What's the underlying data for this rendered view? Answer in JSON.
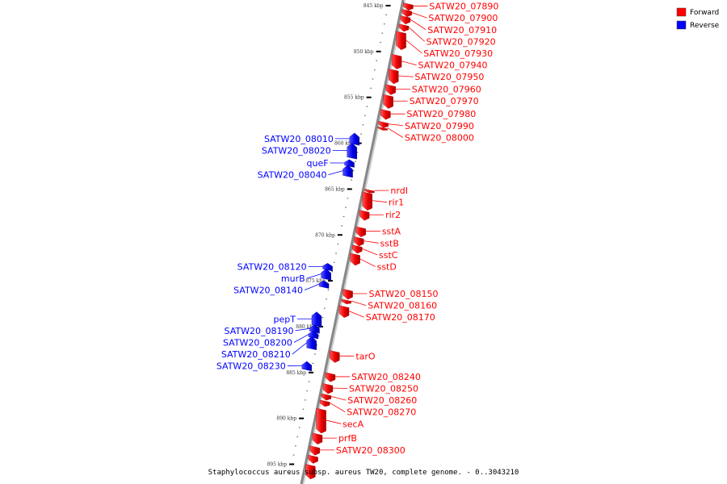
{
  "caption": "Staphylococcus aureus subsp. aureus TW20, complete genome. - 0..3043210",
  "legend": [
    {
      "label": "Forward",
      "color": "#ff0000"
    },
    {
      "label": "Reverse",
      "color": "#0000ff"
    }
  ],
  "colors": {
    "forward": "#ff0000",
    "reverse": "#0000ff",
    "backbone": "#888888"
  },
  "kbp_marks": [
    {
      "label": "845 kbp",
      "kbp": 845
    },
    {
      "label": "850 kbp",
      "kbp": 850
    },
    {
      "label": "855 kbp",
      "kbp": 855
    },
    {
      "label": "860 kbp",
      "kbp": 860
    },
    {
      "label": "865 kbp",
      "kbp": 865
    },
    {
      "label": "870 kbp",
      "kbp": 870
    },
    {
      "label": "875 kbp",
      "kbp": 875
    },
    {
      "label": "880 kbp",
      "kbp": 880
    },
    {
      "label": "885 kbp",
      "kbp": 885
    },
    {
      "label": "890 kbp",
      "kbp": 890
    },
    {
      "label": "895 kbp",
      "kbp": 895
    }
  ],
  "genes_forward": [
    {
      "label": "SATW20_07890",
      "start": 844.7,
      "end": 845.4
    },
    {
      "label": "SATW20_07900",
      "start": 845.4,
      "end": 846.1
    },
    {
      "label": "SATW20_07910",
      "start": 846.1,
      "end": 846.9
    },
    {
      "label": "SATW20_07920",
      "start": 847.0,
      "end": 847.7
    },
    {
      "label": "SATW20_07930",
      "start": 847.8,
      "end": 849.7
    },
    {
      "label": "SATW20_07940",
      "start": 850.3,
      "end": 851.8
    },
    {
      "label": "SATW20_07950",
      "start": 851.9,
      "end": 853.4
    },
    {
      "label": "SATW20_07960",
      "start": 853.6,
      "end": 854.6
    },
    {
      "label": "SATW20_07970",
      "start": 854.7,
      "end": 856.1
    },
    {
      "label": "SATW20_07980",
      "start": 856.3,
      "end": 857.3
    },
    {
      "label": "SATW20_07990",
      "start": 857.6,
      "end": 858.2
    },
    {
      "label": "SATW20_08000",
      "start": 858.2,
      "end": 858.3
    },
    {
      "label": "nrdI",
      "start": 865.0,
      "end": 865.3
    },
    {
      "label": "rir1",
      "start": 865.3,
      "end": 867.2
    },
    {
      "label": "rir2",
      "start": 867.3,
      "end": 868.3
    },
    {
      "label": "sstA",
      "start": 869.1,
      "end": 870.1
    },
    {
      "label": "sstB",
      "start": 870.2,
      "end": 871.1
    },
    {
      "label": "sstC",
      "start": 871.1,
      "end": 871.9
    },
    {
      "label": "sstD",
      "start": 872.0,
      "end": 873.2
    },
    {
      "label": "SATW20_08150",
      "start": 875.9,
      "end": 876.9
    },
    {
      "label": "SATW20_08160",
      "start": 877.0,
      "end": 877.4
    },
    {
      "label": "SATW20_08170",
      "start": 877.7,
      "end": 878.9
    },
    {
      "label": "tarO",
      "start": 882.6,
      "end": 883.8
    },
    {
      "label": "SATW20_08240",
      "start": 885.0,
      "end": 885.9
    },
    {
      "label": "SATW20_08250",
      "start": 886.2,
      "end": 887.2
    },
    {
      "label": "SATW20_08260",
      "start": 887.3,
      "end": 887.9
    },
    {
      "label": "SATW20_08270",
      "start": 888.0,
      "end": 888.6
    },
    {
      "label": "secA",
      "start": 888.9,
      "end": 891.5
    },
    {
      "label": "prfB",
      "start": 891.6,
      "end": 892.7
    },
    {
      "label": "SATW20_08300",
      "start": 893.0,
      "end": 893.9
    },
    {
      "label": "",
      "start": 894.0,
      "end": 894.8
    },
    {
      "label": "",
      "start": 895.0,
      "end": 896.5
    }
  ],
  "genes_reverse": [
    {
      "label": "SATW20_08010",
      "start": 859.0,
      "end": 860.0
    },
    {
      "label": "SATW20_08020",
      "start": 860.1,
      "end": 861.5
    },
    {
      "label": "queF",
      "start": 861.9,
      "end": 862.4
    },
    {
      "label": "SATW20_08040",
      "start": 862.5,
      "end": 863.5
    },
    {
      "label": "SATW20_08120",
      "start": 873.2,
      "end": 873.7
    },
    {
      "label": "murB",
      "start": 873.8,
      "end": 874.7
    },
    {
      "label": "SATW20_08140",
      "start": 875.1,
      "end": 875.6
    },
    {
      "label": "pepT",
      "start": 878.5,
      "end": 879.8
    },
    {
      "label": "SATW20_08190",
      "start": 879.9,
      "end": 880.5
    },
    {
      "label": "SATW20_08200",
      "start": 880.6,
      "end": 881.1
    },
    {
      "label": "SATW20_08210",
      "start": 881.2,
      "end": 882.3
    },
    {
      "label": "SATW20_08230",
      "start": 883.9,
      "end": 884.6
    }
  ]
}
